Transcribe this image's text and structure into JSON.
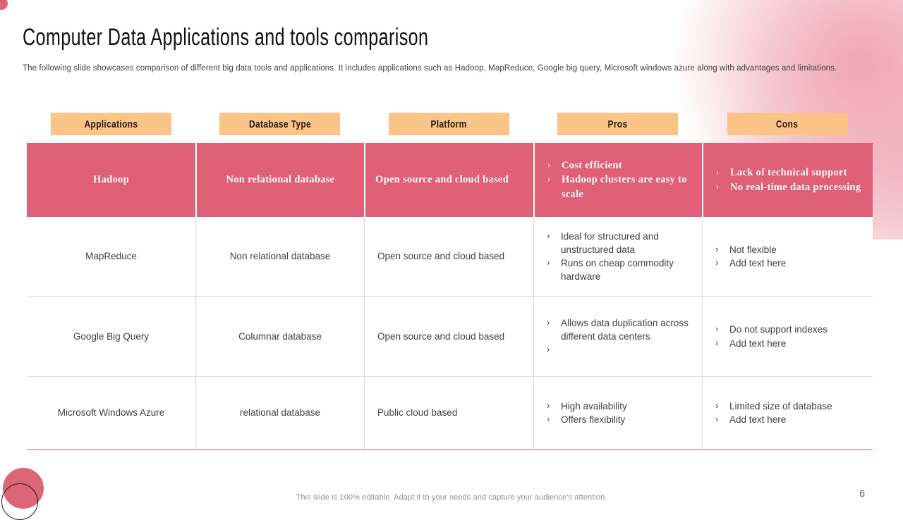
{
  "slide": {
    "title": "Computer Data Applications and tools comparison",
    "subtitle": "The following slide showcases comparison of different big data tools and applications. It includes applications such as Hadoop, MapReduce, Google big query, Microsoft windows azure along with advantages and limitations.",
    "footer_note": "This slide is 100% editable. Adapt it to your needs and capture your audience's attention.",
    "page_number": "6"
  },
  "icons": {
    "bullet": "›"
  },
  "colors": {
    "accent_red": "#E06077",
    "accent_orange": "#FAC388",
    "tab_text": "#2B1D0E",
    "body_text": "#3F3F3F",
    "grid_line": "#DBDBDB",
    "table_bottom_line": "#E3AEB8",
    "footer_text": "#8F8F8F"
  },
  "table": {
    "headers": [
      "Applications",
      "Database Type",
      "Platform",
      "Pros",
      "Cons"
    ],
    "rows": [
      {
        "application": "Hadoop",
        "database_type": "Non relational database",
        "platform": "Open source and cloud based",
        "pros": [
          "Cost efficient",
          "Hadoop clusters are easy to scale"
        ],
        "cons": [
          "Lack of technical support",
          "No real-time data processing"
        ]
      },
      {
        "application": "MapReduce",
        "database_type": "Non relational database",
        "platform": "Open source and cloud based",
        "pros": [
          "Ideal for structured and unstructured data",
          "Runs on cheap commodity hardware"
        ],
        "cons": [
          "Not flexible",
          "Add text here"
        ]
      },
      {
        "application": "Google Big Query",
        "database_type": "Columnar database",
        "platform": "Open source and cloud based",
        "pros": [
          "Allows data duplication across different data centers",
          ""
        ],
        "cons": [
          "Do not support indexes",
          "Add text here"
        ]
      },
      {
        "application": "Microsoft Windows Azure",
        "database_type": "relational database",
        "platform": "Public cloud based",
        "pros": [
          "High availability",
          "Offers flexibility"
        ],
        "cons": [
          "Limited size of database",
          "Add text here"
        ]
      }
    ]
  }
}
